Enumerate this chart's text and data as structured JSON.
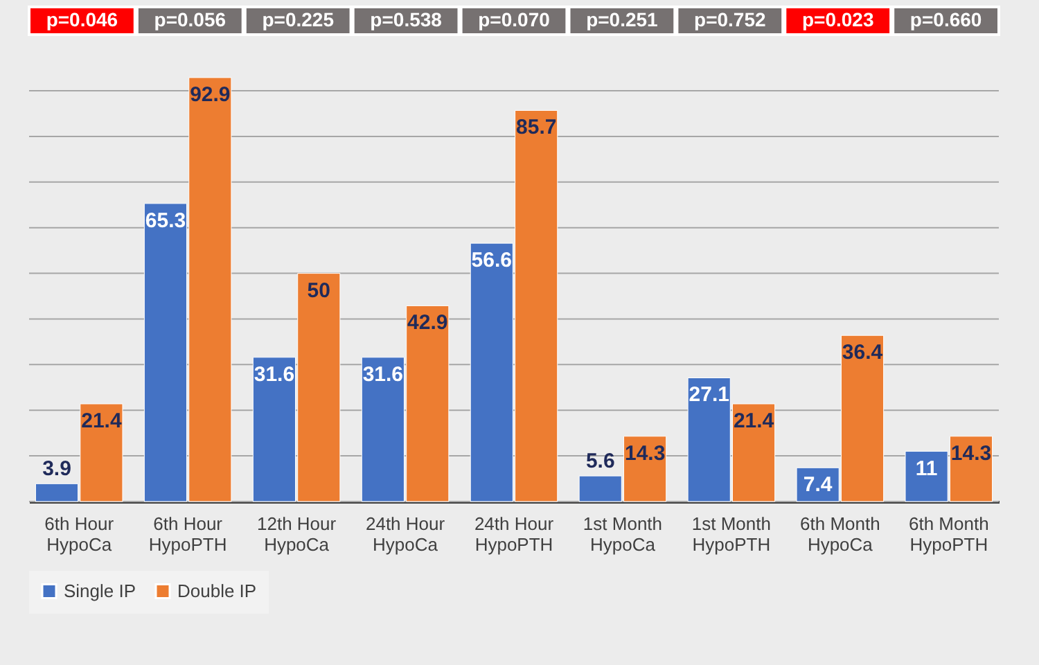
{
  "chart_data": {
    "type": "bar",
    "categories": [
      "6th Hour\nHypoCa",
      "6th Hour\nHypoPTH",
      "12th Hour\nHypoCa",
      "24th Hour\nHypoCa",
      "24th Hour\nHypoPTH",
      "1st Month\nHypoCa",
      "1st Month\nHypoPTH",
      "6th Month\nHypoCa",
      "6th Month\nHypoPTH"
    ],
    "series": [
      {
        "name": "Single IP",
        "color": "#4472c4",
        "values": [
          3.9,
          65.3,
          31.6,
          31.6,
          56.6,
          5.6,
          27.1,
          7.4,
          11
        ]
      },
      {
        "name": "Double IP",
        "color": "#ed7d31",
        "values": [
          21.4,
          92.9,
          50,
          42.9,
          85.7,
          14.3,
          21.4,
          36.4,
          14.3
        ]
      }
    ],
    "annotations": [
      "p=0.046",
      "p=0.056",
      "p=0.225",
      "p=0.538",
      "p=0.070",
      "p=0.251",
      "p=0.752",
      "p=0.023",
      "p=0.660"
    ],
    "yticks": [
      {
        "value": 0,
        "label": null
      },
      {
        "value": 10,
        "label": null
      },
      {
        "value": 20,
        "label": null
      },
      {
        "value": 30,
        "label": null
      },
      {
        "value": 40,
        "label": null
      },
      {
        "value": 50,
        "label": null
      },
      {
        "value": 60,
        "label": null
      },
      {
        "value": 70,
        "label": null
      },
      {
        "value": 80,
        "label": null
      },
      {
        "value": 90,
        "label": null
      }
    ],
    "tick_labels": "x",
    "grid": "y",
    "legend": "bottom",
    "data_labels": true
  }
}
